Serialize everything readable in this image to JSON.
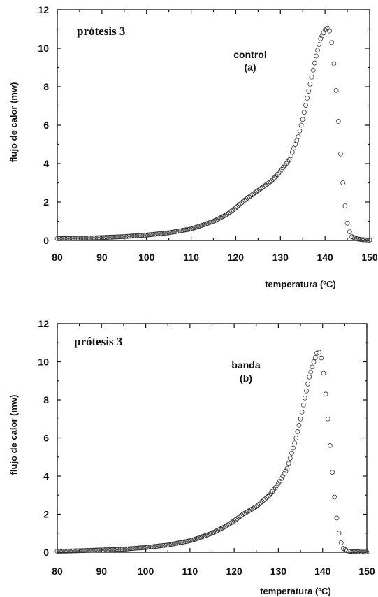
{
  "chart_data": [
    {
      "type": "scatter",
      "title": "prótesis 3",
      "annotation": [
        "control",
        "(a)"
      ],
      "xlabel": "temperatura (ºC)",
      "ylabel": "flujo de calor (mw)",
      "xlim": [
        80,
        150
      ],
      "ylim": [
        0,
        12
      ],
      "xticks": [
        80,
        90,
        100,
        110,
        120,
        130,
        140,
        150
      ],
      "yticks": [
        0,
        2,
        4,
        6,
        8,
        10,
        12
      ],
      "series": [
        {
          "x": [
            80,
            85,
            90,
            95,
            100,
            105,
            110,
            112,
            115,
            118,
            120,
            122,
            125,
            128,
            130,
            132,
            134,
            135,
            136,
            137,
            138,
            139,
            140,
            140.6,
            141,
            141.5,
            142,
            142.5,
            143,
            143.5,
            144,
            144.5,
            145,
            145.5,
            146,
            147,
            148,
            149,
            150
          ],
          "y": [
            0.1,
            0.12,
            0.15,
            0.2,
            0.28,
            0.4,
            0.6,
            0.75,
            1.0,
            1.35,
            1.7,
            2.1,
            2.6,
            3.1,
            3.6,
            4.2,
            5.4,
            6.3,
            7.4,
            8.5,
            9.6,
            10.5,
            10.95,
            11.05,
            10.9,
            10.3,
            9.2,
            7.8,
            6.2,
            4.5,
            3.0,
            1.8,
            0.9,
            0.45,
            0.2,
            0.1,
            0.05,
            0.03,
            0.02
          ]
        }
      ]
    },
    {
      "type": "scatter",
      "title": "prótesis 3",
      "annotation": [
        "banda",
        "(b)"
      ],
      "xlabel": "temperatura (ºC)",
      "ylabel": "flujo de calor (mw)",
      "xlim": [
        80,
        150
      ],
      "ylim": [
        0,
        12
      ],
      "xticks": [
        80,
        90,
        100,
        110,
        120,
        130,
        140,
        150
      ],
      "yticks": [
        0,
        2,
        4,
        6,
        8,
        10,
        12
      ],
      "series": [
        {
          "x": [
            80,
            85,
            90,
            95,
            100,
            105,
            110,
            112,
            115,
            118,
            120,
            122,
            125,
            128,
            130,
            132,
            134,
            135,
            136,
            137,
            138,
            138.7,
            139.2,
            139.7,
            140.2,
            140.7,
            141.2,
            141.7,
            142.2,
            142.7,
            143.2,
            143.7,
            144.2,
            144.7,
            145.5,
            146,
            147,
            148,
            149,
            150
          ],
          "y": [
            0.05,
            0.08,
            0.12,
            0.16,
            0.25,
            0.38,
            0.6,
            0.75,
            1.0,
            1.35,
            1.65,
            2.0,
            2.4,
            3.0,
            3.6,
            4.4,
            6.0,
            7.0,
            8.1,
            9.2,
            10.0,
            10.45,
            10.5,
            10.2,
            9.4,
            8.3,
            7.0,
            5.6,
            4.2,
            2.9,
            1.8,
            1.0,
            0.5,
            0.2,
            0.08,
            0.05,
            0.03,
            0.02,
            0.01,
            0.01
          ]
        }
      ]
    }
  ]
}
